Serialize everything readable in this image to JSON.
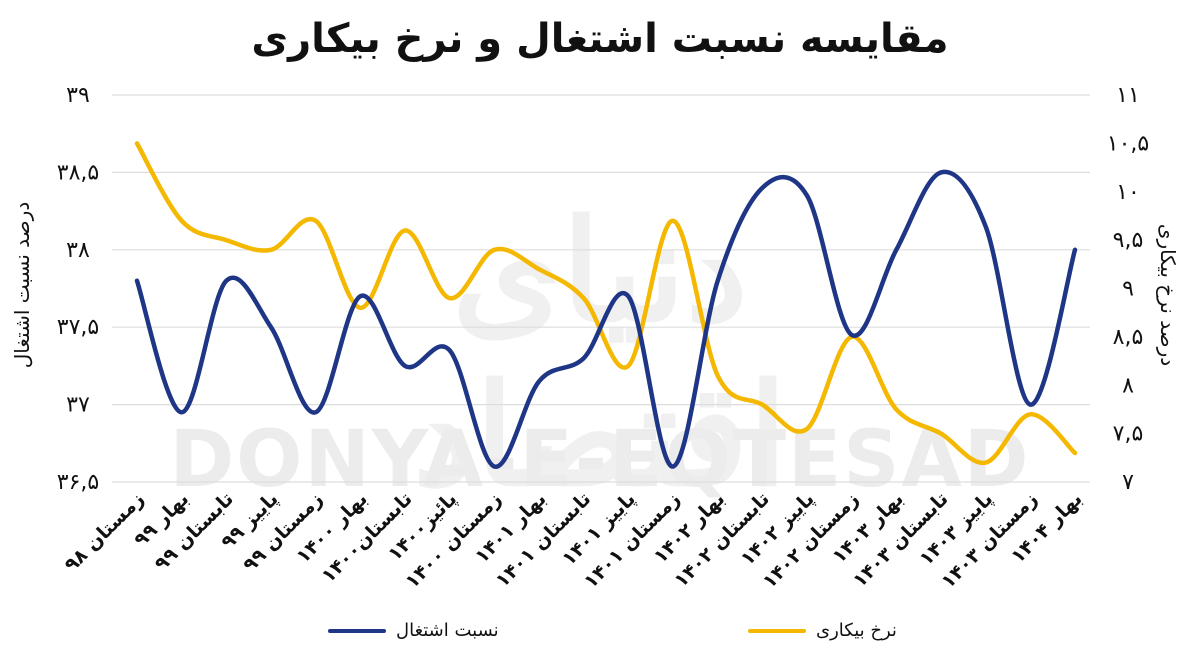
{
  "title": "مقایسه نسبت اشتغال و نرخ بیکاری",
  "watermark": {
    "text": "DONYA-E-EQTESAD",
    "logo_text": "دنیای اقتصاد"
  },
  "colors": {
    "employment": "#1f3586",
    "unemployment": "#f5b800",
    "grid": "#dddddd"
  },
  "legend": {
    "employment": "نسبت اشتغال",
    "unemployment": "نرخ بیکاری"
  },
  "chart_data": {
    "type": "line",
    "title": "مقایسه نسبت اشتغال و نرخ بیکاری",
    "categories": [
      "زمستان ۹۸",
      "بهار ۹۹",
      "تابستان ۹۹",
      "پاییز ۹۹",
      "زمستان ۹۹",
      "بهار ۱۴۰۰",
      "تابستان۱۴۰۰",
      "پائیز۱۴۰۰",
      "زمستان ۱۴۰۰",
      "بهار ۱۴۰۱",
      "تابستان ۱۴۰۱",
      "پاییز ۱۴۰۱",
      "زمستان ۱۴۰۱",
      "بهار ۱۴۰۲",
      "تابستان ۱۴۰۲",
      "پاییز ۱۴۰۲",
      "زمستان ۱۴۰۲",
      "بهار ۱۴۰۳",
      "تابستان ۱۴۰۳",
      "پاییز ۱۴۰۳",
      "زمستان ۱۴۰۳",
      "بهار ۱۴۰۴"
    ],
    "ylabel": "درصد نسبت اشتغال",
    "y2label": "درصد نرخ بیکاری",
    "ylim": [
      36.5,
      39
    ],
    "y2lim": [
      7,
      11
    ],
    "yticks": [
      39,
      38.5,
      38,
      37.5,
      37,
      36.5
    ],
    "ytick_labels": [
      "۳۹",
      "۳۸,۵",
      "۳۸",
      "۳۷,۵",
      "۳۷",
      "۳۶,۵"
    ],
    "y2ticks": [
      11,
      10.5,
      10,
      9.5,
      9,
      8.5,
      8,
      7.5,
      7
    ],
    "y2tick_labels": [
      "۱۱",
      "۱۰,۵",
      "۱۰",
      "۹,۵",
      "۹",
      "۸,۵",
      "۸",
      "۷,۵",
      "۷"
    ],
    "grid": true,
    "series": [
      {
        "name": "نسبت اشتغال",
        "axis": "left",
        "values": [
          37.8,
          36.95,
          37.8,
          37.5,
          36.95,
          37.7,
          37.25,
          37.35,
          36.6,
          37.15,
          37.3,
          37.7,
          36.6,
          37.8,
          38.4,
          38.35,
          37.45,
          38.0,
          38.5,
          38.15,
          37.0,
          38.0
        ]
      },
      {
        "name": "نرخ بیکاری",
        "axis": "right",
        "values": [
          10.5,
          9.7,
          9.5,
          9.4,
          9.7,
          8.8,
          9.6,
          8.9,
          9.4,
          9.2,
          8.9,
          8.2,
          9.7,
          8.1,
          7.8,
          7.55,
          8.5,
          7.75,
          7.5,
          7.2,
          7.7,
          7.3
        ]
      }
    ]
  }
}
